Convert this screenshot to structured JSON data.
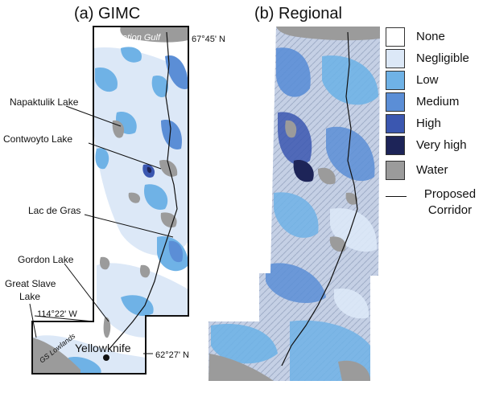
{
  "panels": {
    "a": {
      "title": "(a)   GIMC"
    },
    "b": {
      "title": "(b)   Regional"
    }
  },
  "labels": {
    "coronation_gulf": "Coronation Gulf",
    "lat_north": "67°45' N",
    "napaktulik": "Napaktulik Lake",
    "contwoyto": "Contwoyto Lake",
    "lac_de_gras": "Lac de Gras",
    "gordon": "Gordon Lake",
    "great_slave_1": "Great Slave",
    "great_slave_2": "Lake",
    "lon_west": "114°22' W",
    "gs_lowlands": "GS Lowlands",
    "yellowknife": "Yellowknife",
    "lat_south": "62°27' N"
  },
  "legend": {
    "items": [
      {
        "label": "None",
        "color": "#ffffff"
      },
      {
        "label": "Negligible",
        "color": "#dce8f7"
      },
      {
        "label": "Low",
        "color": "#6fb2e6"
      },
      {
        "label": "Medium",
        "color": "#5b8ed6"
      },
      {
        "label": "High",
        "color": "#3b57b0"
      },
      {
        "label": "Very high",
        "color": "#1d2458"
      },
      {
        "label": "Water",
        "color": "#9b9b9b"
      }
    ],
    "corridor_line1": "Proposed",
    "corridor_line2": "Corridor"
  }
}
